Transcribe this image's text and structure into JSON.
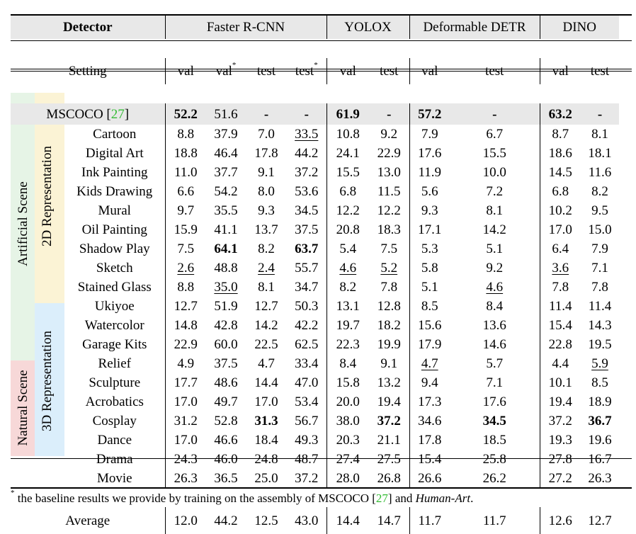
{
  "header": {
    "detector_label": "Detector",
    "setting_label": "Setting",
    "models": [
      "Faster R-CNN",
      "YOLOX",
      "Deformable DETR",
      "DINO"
    ],
    "columns": [
      "val",
      "val",
      "test",
      "test",
      "val",
      "test",
      "val",
      "test",
      "val",
      "test"
    ],
    "star": "*"
  },
  "mscoco": {
    "label": "MSCOCO",
    "cite": "27",
    "values": [
      "52.2",
      "51.6",
      "-",
      "-",
      "61.9",
      "-",
      "57.2",
      "-",
      "63.2",
      "-"
    ]
  },
  "groups": {
    "artificial": "Artificial Scene",
    "natural": "Natural Scene",
    "rep2d": "2D Representation",
    "rep3d": "3D Representation"
  },
  "rows": [
    {
      "name": "Cartoon",
      "values": [
        "8.8",
        "37.9",
        "7.0",
        "33.5",
        "10.8",
        "9.2",
        "7.9",
        "6.7",
        "8.7",
        "8.1"
      ]
    },
    {
      "name": "Digital Art",
      "values": [
        "18.8",
        "46.4",
        "17.8",
        "44.2",
        "24.1",
        "22.9",
        "17.6",
        "15.5",
        "18.6",
        "18.1"
      ]
    },
    {
      "name": "Ink Painting",
      "values": [
        "11.0",
        "37.7",
        "9.1",
        "37.2",
        "15.5",
        "13.0",
        "11.9",
        "10.0",
        "14.5",
        "11.6"
      ]
    },
    {
      "name": "Kids Drawing",
      "values": [
        "6.6",
        "54.2",
        "8.0",
        "53.6",
        "6.8",
        "11.5",
        "5.6",
        "7.2",
        "6.8",
        "8.2"
      ]
    },
    {
      "name": "Mural",
      "values": [
        "9.7",
        "35.5",
        "9.3",
        "34.5",
        "12.2",
        "12.2",
        "9.3",
        "8.1",
        "10.2",
        "9.5"
      ]
    },
    {
      "name": "Oil Painting",
      "values": [
        "15.9",
        "41.1",
        "13.7",
        "37.5",
        "20.8",
        "18.3",
        "17.1",
        "14.2",
        "17.0",
        "15.0"
      ]
    },
    {
      "name": "Shadow Play",
      "values": [
        "7.5",
        "64.1",
        "8.2",
        "63.7",
        "5.4",
        "7.5",
        "5.3",
        "5.1",
        "6.4",
        "7.9"
      ]
    },
    {
      "name": "Sketch",
      "values": [
        "2.6",
        "48.8",
        "2.4",
        "55.7",
        "4.6",
        "5.2",
        "5.8",
        "9.2",
        "3.6",
        "7.1"
      ]
    },
    {
      "name": "Stained Glass",
      "values": [
        "8.8",
        "35.0",
        "8.1",
        "34.7",
        "8.2",
        "7.8",
        "5.1",
        "4.6",
        "7.8",
        "7.8"
      ]
    },
    {
      "name": "Ukiyoe",
      "values": [
        "12.7",
        "51.9",
        "12.7",
        "50.3",
        "13.1",
        "12.8",
        "8.5",
        "8.4",
        "11.4",
        "11.4"
      ]
    },
    {
      "name": "Watercolor",
      "values": [
        "14.8",
        "42.8",
        "14.2",
        "42.2",
        "19.7",
        "18.2",
        "15.6",
        "13.6",
        "15.4",
        "14.3"
      ]
    },
    {
      "name": "Garage Kits",
      "values": [
        "22.9",
        "60.0",
        "22.5",
        "62.5",
        "22.3",
        "19.9",
        "17.9",
        "14.6",
        "22.8",
        "19.5"
      ]
    },
    {
      "name": "Relief",
      "values": [
        "4.9",
        "37.5",
        "4.7",
        "33.4",
        "8.4",
        "9.1",
        "4.7",
        "5.7",
        "4.4",
        "5.9"
      ]
    },
    {
      "name": "Sculpture",
      "values": [
        "17.7",
        "48.6",
        "14.4",
        "47.0",
        "15.8",
        "13.2",
        "9.4",
        "7.1",
        "10.1",
        "8.5"
      ]
    },
    {
      "name": "Acrobatics",
      "values": [
        "17.0",
        "49.7",
        "17.0",
        "53.4",
        "20.0",
        "19.4",
        "17.3",
        "17.6",
        "19.4",
        "18.9"
      ]
    },
    {
      "name": "Cosplay",
      "values": [
        "31.2",
        "52.8",
        "31.3",
        "56.7",
        "38.0",
        "37.2",
        "34.6",
        "34.5",
        "37.2",
        "36.7"
      ]
    },
    {
      "name": "Dance",
      "values": [
        "17.0",
        "46.6",
        "18.4",
        "49.3",
        "20.3",
        "21.1",
        "17.8",
        "18.5",
        "19.3",
        "19.6"
      ]
    },
    {
      "name": "Drama",
      "values": [
        "24.3",
        "46.0",
        "24.8",
        "48.7",
        "27.4",
        "27.5",
        "15.4",
        "25.8",
        "27.8",
        "16.7"
      ]
    },
    {
      "name": "Movie",
      "values": [
        "26.3",
        "36.5",
        "25.0",
        "37.2",
        "28.0",
        "26.8",
        "26.6",
        "26.2",
        "27.2",
        "26.3"
      ]
    }
  ],
  "average": {
    "label": "Average",
    "values": [
      "12.0",
      "44.2",
      "12.5",
      "43.0",
      "14.4",
      "14.7",
      "11.7",
      "11.7",
      "12.6",
      "12.7"
    ]
  },
  "footnote": {
    "star": "*",
    "text": "the baseline results we provide by training on the assembly of MSCOCO",
    "cite": "27",
    "and": "and",
    "dataset": "Human-Art",
    "period": "."
  },
  "colors": {
    "header_bg": "#e8e8e8",
    "artificial_bg": "#e6f4e6",
    "natural_bg": "#f7d8d8",
    "rep2d_bg": "#fbf3d5",
    "rep3d_bg": "#dbeefb",
    "citation": "#33bb33"
  }
}
